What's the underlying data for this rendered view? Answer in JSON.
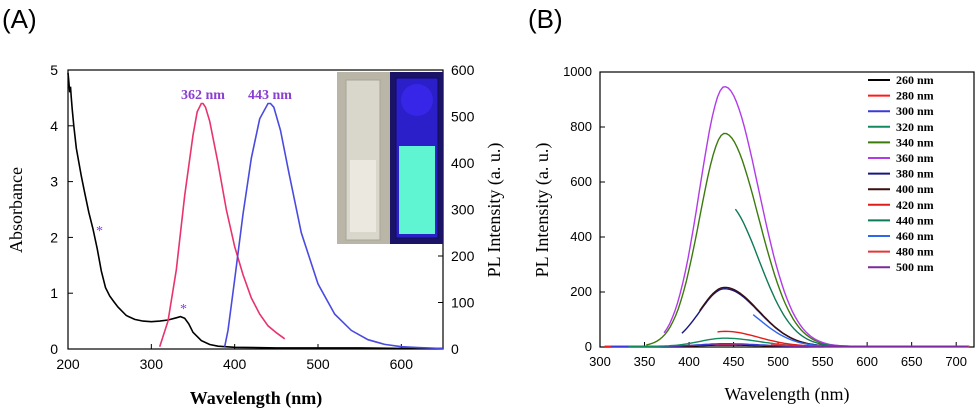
{
  "figure": {
    "panel_a_label": "(A)",
    "panel_b_label": "(B)"
  },
  "chart_data": [
    {
      "type": "line",
      "panel": "A",
      "xlabel": "Wavelength (nm)",
      "ylabel": "Absorbance",
      "ylabel_right": "PL Intensity (a. u.)",
      "xlim": [
        200,
        650
      ],
      "ylim": [
        0,
        5
      ],
      "ylim_right": [
        0,
        600
      ],
      "xticks": [
        "200",
        "300",
        "400",
        "500",
        "600"
      ],
      "yticks": [
        "0",
        "1",
        "2",
        "3",
        "4",
        "5"
      ],
      "yticks_right": [
        "0",
        "100",
        "200",
        "300",
        "400",
        "500",
        "600"
      ],
      "annotations": [
        "362 nm",
        "443 nm",
        "*",
        "*"
      ],
      "inset": "cuvette photographs under daylight and UV light",
      "series": [
        {
          "axis": "left",
          "color": "#000000",
          "x": [
            200,
            201,
            202,
            203,
            204,
            205,
            207,
            210,
            213,
            216,
            220,
            225,
            230,
            235,
            240,
            245,
            250,
            255,
            260,
            270,
            280,
            290,
            300,
            310,
            320,
            330,
            335,
            340,
            345,
            350,
            360,
            370,
            380,
            400,
            450,
            500,
            550,
            600,
            650
          ],
          "y": [
            4.95,
            4.8,
            4.6,
            4.7,
            4.5,
            4.3,
            4.0,
            3.6,
            3.35,
            3.1,
            2.8,
            2.45,
            2.15,
            1.8,
            1.4,
            1.1,
            0.95,
            0.85,
            0.75,
            0.6,
            0.53,
            0.5,
            0.49,
            0.5,
            0.52,
            0.56,
            0.58,
            0.55,
            0.45,
            0.3,
            0.15,
            0.08,
            0.05,
            0.03,
            0.02,
            0.02,
            0.02,
            0.01,
            0.01
          ]
        },
        {
          "axis": "right",
          "color": "#e8336d",
          "x": [
            310,
            320,
            330,
            340,
            350,
            355,
            360,
            362,
            365,
            370,
            380,
            390,
            400,
            410,
            420,
            430,
            440,
            450,
            460
          ],
          "y": [
            5,
            60,
            170,
            330,
            460,
            510,
            528,
            528,
            520,
            490,
            400,
            300,
            220,
            160,
            110,
            75,
            50,
            35,
            22
          ]
        },
        {
          "axis": "right",
          "color": "#4a4ae0",
          "x": [
            388,
            392,
            400,
            410,
            420,
            430,
            440,
            443,
            447,
            455,
            465,
            480,
            500,
            520,
            540,
            560,
            580,
            600,
            620,
            650
          ],
          "y": [
            5,
            40,
            150,
            290,
            410,
            495,
            528,
            528,
            520,
            470,
            380,
            250,
            140,
            75,
            40,
            20,
            10,
            5,
            3,
            1
          ]
        }
      ]
    },
    {
      "type": "line",
      "panel": "B",
      "xlabel": "Wavelength (nm)",
      "ylabel": "PL Intensity (a. u.)",
      "xlim": [
        300,
        720
      ],
      "ylim": [
        0,
        1000
      ],
      "xticks": [
        "300",
        "350",
        "400",
        "450",
        "500",
        "550",
        "600",
        "650",
        "700"
      ],
      "yticks": [
        "0",
        "200",
        "400",
        "600",
        "800",
        "1000"
      ],
      "legend_position": "top-right",
      "series": [
        {
          "name": "260 nm",
          "color": "#000000",
          "peak": 5
        },
        {
          "name": "280 nm",
          "color": "#ff1a1a",
          "peak": 8
        },
        {
          "name": "300 nm",
          "color": "#3a3ad8",
          "peak": 10
        },
        {
          "name": "320 nm",
          "color": "#138a5e",
          "peak": 30
        },
        {
          "name": "340 nm",
          "color": "#3d7a0e",
          "peak": 775
        },
        {
          "name": "360 nm",
          "color": "#b23be6",
          "peak": 945
        },
        {
          "name": "380 nm",
          "color": "#16167f",
          "peak": 210
        },
        {
          "name": "400 nm",
          "color": "#3a0f0f",
          "peak": 215
        },
        {
          "name": "420 nm",
          "color": "#e21b1b",
          "peak": 55
        },
        {
          "name": "440 nm",
          "color": "#0f7a56",
          "peak": 525
        },
        {
          "name": "460 nm",
          "color": "#2f66f0",
          "peak": 165
        },
        {
          "name": "480 nm",
          "color": "#e43636",
          "peak": 25
        },
        {
          "name": "500 nm",
          "color": "#7a2a9c",
          "peak": 8
        }
      ]
    }
  ]
}
